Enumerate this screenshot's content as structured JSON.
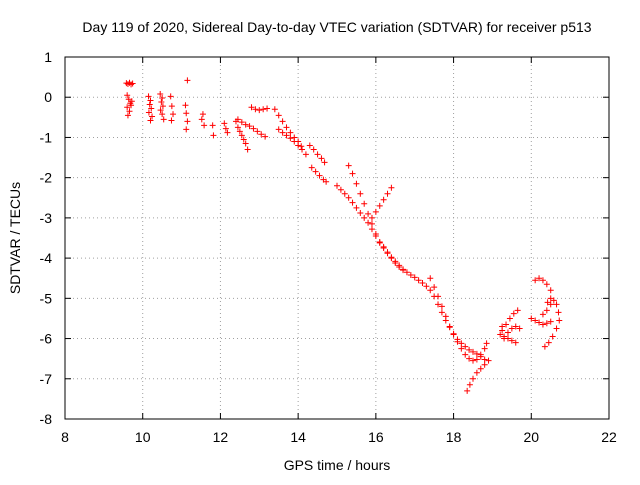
{
  "chart_data": {
    "type": "scatter",
    "title": "Day 119 of 2020, Sidereal Day-to-day VTEC variation (SDTVAR) for receiver p513",
    "xlabel": "GPS time / hours",
    "ylabel": "SDTVAR / TECUs",
    "xlim": [
      8,
      22
    ],
    "ylim": [
      -8,
      1
    ],
    "xticks": [
      8,
      10,
      12,
      14,
      16,
      18,
      20,
      22
    ],
    "yticks": [
      1,
      0,
      -1,
      -2,
      -3,
      -4,
      -5,
      -6,
      -7,
      -8
    ],
    "grid": true,
    "marker": "plus",
    "color": "#ff0000",
    "series": [
      {
        "name": "SDTVAR",
        "points": [
          [
            9.58,
            0.35
          ],
          [
            9.62,
            0.33
          ],
          [
            9.66,
            0.36
          ],
          [
            9.7,
            0.32
          ],
          [
            9.74,
            0.34
          ],
          [
            9.6,
            0.05
          ],
          [
            9.64,
            -0.05
          ],
          [
            9.68,
            -0.15
          ],
          [
            9.6,
            -0.25
          ],
          [
            9.66,
            -0.35
          ],
          [
            9.72,
            -0.1
          ],
          [
            9.62,
            -0.45
          ],
          [
            9.7,
            -0.2
          ],
          [
            10.15,
            0.02
          ],
          [
            10.2,
            -0.08
          ],
          [
            10.18,
            -0.18
          ],
          [
            10.22,
            -0.28
          ],
          [
            10.16,
            -0.38
          ],
          [
            10.24,
            -0.48
          ],
          [
            10.2,
            -0.58
          ],
          [
            10.45,
            0.08
          ],
          [
            10.5,
            -0.02
          ],
          [
            10.48,
            -0.12
          ],
          [
            10.52,
            -0.22
          ],
          [
            10.46,
            -0.32
          ],
          [
            10.5,
            -0.42
          ],
          [
            10.54,
            -0.55
          ],
          [
            10.72,
            0.02
          ],
          [
            10.75,
            -0.22
          ],
          [
            10.78,
            -0.42
          ],
          [
            10.74,
            -0.58
          ],
          [
            11.15,
            0.42
          ],
          [
            11.1,
            -0.2
          ],
          [
            11.12,
            -0.4
          ],
          [
            11.15,
            -0.6
          ],
          [
            11.12,
            -0.8
          ],
          [
            11.55,
            -0.42
          ],
          [
            11.52,
            -0.55
          ],
          [
            11.58,
            -0.7
          ],
          [
            11.8,
            -0.7
          ],
          [
            11.82,
            -0.95
          ],
          [
            12.1,
            -0.65
          ],
          [
            12.14,
            -0.78
          ],
          [
            12.18,
            -0.88
          ],
          [
            12.4,
            -0.6
          ],
          [
            12.45,
            -0.75
          ],
          [
            12.5,
            -0.85
          ],
          [
            12.55,
            -0.95
          ],
          [
            12.6,
            -1.05
          ],
          [
            12.65,
            -1.15
          ],
          [
            12.7,
            -1.3
          ],
          [
            12.45,
            -0.55
          ],
          [
            12.55,
            -0.62
          ],
          [
            12.65,
            -0.68
          ],
          [
            12.75,
            -0.72
          ],
          [
            12.85,
            -0.78
          ],
          [
            12.95,
            -0.85
          ],
          [
            13.05,
            -0.92
          ],
          [
            13.15,
            -0.98
          ],
          [
            12.8,
            -0.25
          ],
          [
            12.9,
            -0.3
          ],
          [
            13.0,
            -0.32
          ],
          [
            13.1,
            -0.3
          ],
          [
            13.2,
            -0.28
          ],
          [
            13.4,
            -0.3
          ],
          [
            13.5,
            -0.45
          ],
          [
            13.6,
            -0.6
          ],
          [
            13.7,
            -0.75
          ],
          [
            13.8,
            -0.88
          ],
          [
            13.9,
            -1.0
          ],
          [
            14.0,
            -1.1
          ],
          [
            14.08,
            -1.22
          ],
          [
            13.5,
            -0.8
          ],
          [
            13.6,
            -0.88
          ],
          [
            13.7,
            -0.95
          ],
          [
            13.8,
            -1.02
          ],
          [
            13.9,
            -1.1
          ],
          [
            14.0,
            -1.2
          ],
          [
            14.1,
            -1.3
          ],
          [
            14.2,
            -1.42
          ],
          [
            14.3,
            -1.2
          ],
          [
            14.4,
            -1.3
          ],
          [
            14.5,
            -1.42
          ],
          [
            14.6,
            -1.52
          ],
          [
            14.68,
            -1.62
          ],
          [
            14.35,
            -1.75
          ],
          [
            14.45,
            -1.85
          ],
          [
            14.55,
            -1.95
          ],
          [
            14.65,
            -2.05
          ],
          [
            14.72,
            -2.1
          ],
          [
            15.0,
            -2.2
          ],
          [
            15.1,
            -2.3
          ],
          [
            15.2,
            -2.4
          ],
          [
            15.3,
            -2.5
          ],
          [
            15.4,
            -2.62
          ],
          [
            15.5,
            -2.75
          ],
          [
            15.6,
            -2.88
          ],
          [
            15.7,
            -3.0
          ],
          [
            15.8,
            -3.12
          ],
          [
            15.9,
            -3.28
          ],
          [
            16.0,
            -3.45
          ],
          [
            16.1,
            -3.62
          ],
          [
            16.2,
            -3.75
          ],
          [
            16.3,
            -3.88
          ],
          [
            16.4,
            -4.0
          ],
          [
            16.5,
            -4.12
          ],
          [
            16.6,
            -4.22
          ],
          [
            16.7,
            -4.3
          ],
          [
            15.3,
            -1.7
          ],
          [
            15.4,
            -1.9
          ],
          [
            15.5,
            -2.15
          ],
          [
            15.6,
            -2.4
          ],
          [
            15.7,
            -2.65
          ],
          [
            15.8,
            -2.9
          ],
          [
            15.9,
            -3.15
          ],
          [
            16.0,
            -3.4
          ],
          [
            16.1,
            -3.6
          ],
          [
            16.2,
            -3.72
          ],
          [
            16.3,
            -3.85
          ],
          [
            16.4,
            -3.98
          ],
          [
            16.5,
            -4.08
          ],
          [
            16.6,
            -4.18
          ],
          [
            16.7,
            -4.28
          ],
          [
            15.9,
            -3.0
          ],
          [
            16.0,
            -2.85
          ],
          [
            16.1,
            -2.7
          ],
          [
            16.2,
            -2.55
          ],
          [
            16.3,
            -2.4
          ],
          [
            16.4,
            -2.25
          ],
          [
            16.8,
            -4.35
          ],
          [
            16.9,
            -4.42
          ],
          [
            17.0,
            -4.48
          ],
          [
            17.1,
            -4.55
          ],
          [
            17.2,
            -4.62
          ],
          [
            17.3,
            -4.7
          ],
          [
            17.4,
            -4.8
          ],
          [
            17.5,
            -4.95
          ],
          [
            17.6,
            -5.15
          ],
          [
            17.7,
            -5.35
          ],
          [
            17.8,
            -5.55
          ],
          [
            17.9,
            -5.72
          ],
          [
            18.0,
            -5.88
          ],
          [
            18.1,
            -6.02
          ],
          [
            18.2,
            -6.12
          ],
          [
            18.3,
            -6.2
          ],
          [
            18.4,
            -6.28
          ],
          [
            18.5,
            -6.33
          ],
          [
            18.6,
            -6.38
          ],
          [
            18.7,
            -6.45
          ],
          [
            18.8,
            -6.52
          ],
          [
            18.9,
            -6.55
          ],
          [
            17.4,
            -4.5
          ],
          [
            17.5,
            -4.72
          ],
          [
            17.6,
            -4.95
          ],
          [
            17.7,
            -5.2
          ],
          [
            17.8,
            -5.45
          ],
          [
            17.9,
            -5.7
          ],
          [
            18.0,
            -5.9
          ],
          [
            18.1,
            -6.08
          ],
          [
            18.2,
            -6.25
          ],
          [
            18.3,
            -6.4
          ],
          [
            18.4,
            -6.5
          ],
          [
            18.5,
            -6.55
          ],
          [
            18.6,
            -6.52
          ],
          [
            18.7,
            -6.4
          ],
          [
            18.8,
            -6.25
          ],
          [
            18.85,
            -6.12
          ],
          [
            18.35,
            -7.3
          ],
          [
            18.42,
            -7.15
          ],
          [
            18.5,
            -7.0
          ],
          [
            18.6,
            -6.85
          ],
          [
            18.7,
            -6.75
          ],
          [
            18.8,
            -6.65
          ],
          [
            19.2,
            -5.9
          ],
          [
            19.3,
            -5.95
          ],
          [
            19.4,
            -6.0
          ],
          [
            19.5,
            -6.05
          ],
          [
            19.6,
            -6.1
          ],
          [
            19.25,
            -5.8
          ],
          [
            19.35,
            -5.65
          ],
          [
            19.45,
            -5.5
          ],
          [
            19.55,
            -5.38
          ],
          [
            19.65,
            -5.3
          ],
          [
            19.3,
            -6.0
          ],
          [
            19.4,
            -5.85
          ],
          [
            19.5,
            -5.75
          ],
          [
            19.6,
            -5.7
          ],
          [
            19.7,
            -5.75
          ],
          [
            19.25,
            -5.7
          ],
          [
            20.0,
            -5.5
          ],
          [
            20.1,
            -5.55
          ],
          [
            20.2,
            -5.6
          ],
          [
            20.3,
            -5.65
          ],
          [
            20.4,
            -5.62
          ],
          [
            20.5,
            -5.58
          ],
          [
            20.1,
            -4.55
          ],
          [
            20.2,
            -4.5
          ],
          [
            20.3,
            -4.55
          ],
          [
            20.4,
            -4.65
          ],
          [
            20.5,
            -4.8
          ],
          [
            20.3,
            -5.4
          ],
          [
            20.4,
            -5.3
          ],
          [
            20.5,
            -5.15
          ],
          [
            20.58,
            -5.05
          ],
          [
            20.65,
            -5.15
          ],
          [
            20.7,
            -5.35
          ],
          [
            20.72,
            -5.55
          ],
          [
            20.65,
            -5.75
          ],
          [
            20.55,
            -5.95
          ],
          [
            20.45,
            -6.1
          ],
          [
            20.35,
            -6.2
          ],
          [
            20.5,
            -5.0
          ],
          [
            20.42,
            -5.1
          ]
        ]
      }
    ]
  }
}
